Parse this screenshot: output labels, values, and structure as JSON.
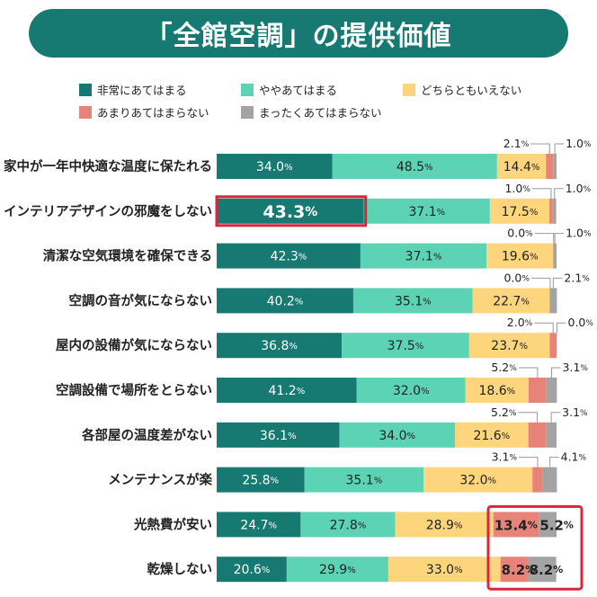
{
  "title": "「全館空調」の提供価値",
  "chart_data": {
    "type": "bar",
    "orientation": "horizontal",
    "stacked": true,
    "xlim": [
      0,
      100
    ],
    "unit": "%",
    "legend_position": "top",
    "categories": [
      "家中が一年中快適な温度に保たれる",
      "インテリアデザインの邪魔をしない",
      "清潔な空気環境を確保できる",
      "空調の音が気にならない",
      "屋内の設備が気にならない",
      "空調設備で場所をとらない",
      "各部屋の温度差がない",
      "メンテナンスが楽",
      "光熱費が安い",
      "乾燥しない"
    ],
    "series": [
      {
        "name": "非常にあてはまる",
        "color": "#177a72",
        "values": [
          34.0,
          43.3,
          42.3,
          40.2,
          36.8,
          41.2,
          36.1,
          25.8,
          24.7,
          20.6
        ]
      },
      {
        "name": "ややあてはまる",
        "color": "#5dd3b5",
        "values": [
          48.5,
          37.1,
          37.1,
          35.1,
          37.5,
          32.0,
          34.0,
          35.1,
          27.8,
          29.9
        ]
      },
      {
        "name": "どちらともいえない",
        "color": "#fcd57d",
        "values": [
          14.4,
          17.5,
          19.6,
          22.7,
          23.7,
          18.6,
          21.6,
          32.0,
          28.9,
          33.0
        ]
      },
      {
        "name": "あまりあてはまらない",
        "color": "#e8837a",
        "values": [
          2.1,
          1.0,
          0.0,
          0.0,
          2.0,
          5.2,
          5.2,
          3.1,
          13.4,
          8.2
        ]
      },
      {
        "name": "まったくあてはまらない",
        "color": "#a3a3a3",
        "values": [
          1.0,
          1.0,
          1.0,
          2.1,
          0.0,
          3.1,
          3.1,
          4.1,
          5.2,
          8.2
        ]
      }
    ],
    "highlight_color": "#d9263a",
    "highlights": [
      {
        "category": "インテリアデザインの邪魔をしない",
        "series": [
          "非常にあてはまる"
        ]
      },
      {
        "category": "光熱費が安い",
        "series": [
          "あまりあてはまらない",
          "まったくあてはまらない"
        ]
      },
      {
        "category": "乾燥しない",
        "series": [
          "あまりあてはまらない",
          "まったくあてはまらない"
        ]
      }
    ]
  }
}
